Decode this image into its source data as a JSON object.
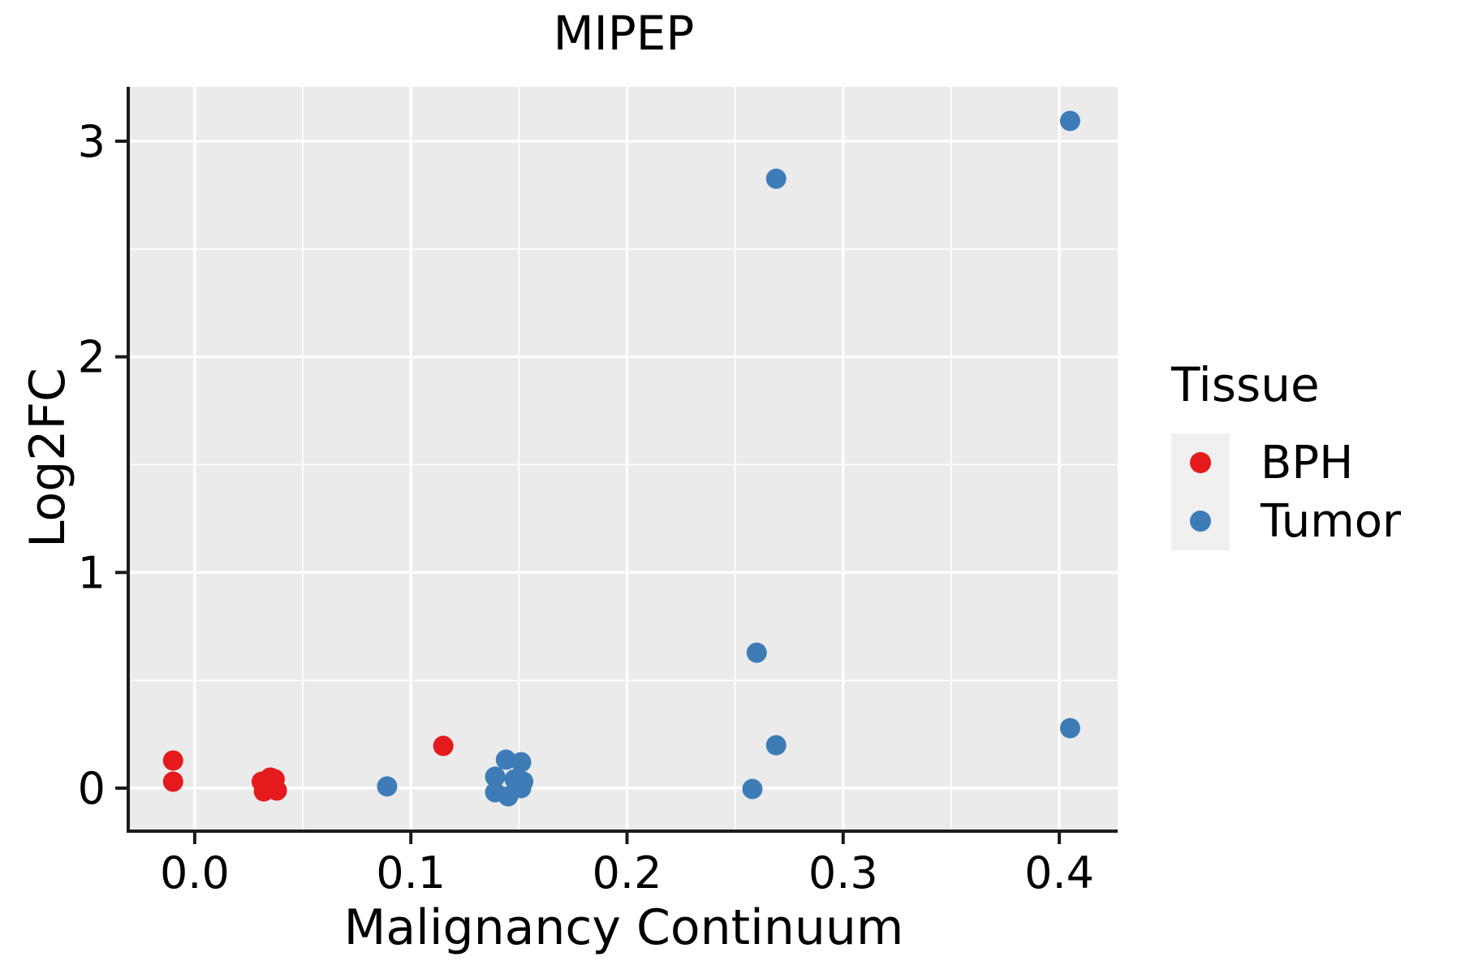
{
  "title": "MIPEP",
  "legend": {
    "title": "Tissue",
    "entries": [
      {
        "label": "BPH",
        "color": "#E41A1C"
      },
      {
        "label": "Tumor",
        "color": "#3E7CB7"
      }
    ]
  },
  "colors": {
    "panel_background": "#EBEBEB",
    "grid": "#FFFFFF",
    "axis": "#1a1a1a",
    "text": "#000000",
    "legend_key_background": "#F0F0F0",
    "bph": "#E41A1C",
    "tumor": "#3E7CB7"
  },
  "chart_data": {
    "type": "scatter",
    "title": "MIPEP",
    "xlabel": "Malignancy Continuum",
    "ylabel": "Log2FC",
    "xlim": [
      -0.03,
      0.427
    ],
    "ylim": [
      -0.192,
      3.252
    ],
    "x_ticks": [
      0.0,
      0.1,
      0.2,
      0.3,
      0.4
    ],
    "x_tick_labels": [
      "0.0",
      "0.1",
      "0.2",
      "0.3",
      "0.4"
    ],
    "y_ticks": [
      0,
      1,
      2,
      3
    ],
    "y_tick_labels": [
      "0",
      "1",
      "2",
      "3"
    ],
    "x_minor_ticks": [
      0.05,
      0.15,
      0.25,
      0.35
    ],
    "y_minor_ticks": [
      0.5,
      1.5,
      2.5
    ],
    "grid": true,
    "legend_position": "right",
    "point_radius_px": 12.5,
    "series": [
      {
        "name": "BPH",
        "color": "#E41A1C",
        "points": [
          [
            -0.01,
            0.128
          ],
          [
            -0.01,
            0.03
          ],
          [
            0.031,
            0.03
          ],
          [
            0.035,
            0.049
          ],
          [
            0.037,
            0.041
          ],
          [
            0.034,
            -0.004
          ],
          [
            0.038,
            -0.011
          ],
          [
            0.032,
            -0.015
          ],
          [
            0.115,
            0.196
          ]
        ]
      },
      {
        "name": "Tumor",
        "color": "#3E7CB7",
        "points": [
          [
            0.089,
            0.008
          ],
          [
            0.144,
            0.132
          ],
          [
            0.151,
            0.12
          ],
          [
            0.139,
            0.053
          ],
          [
            0.148,
            0.041
          ],
          [
            0.152,
            0.03
          ],
          [
            0.139,
            -0.019
          ],
          [
            0.145,
            -0.038
          ],
          [
            0.151,
            0.0
          ],
          [
            0.26,
            0.628
          ],
          [
            0.269,
            0.199
          ],
          [
            0.258,
            -0.004
          ],
          [
            0.269,
            2.826
          ],
          [
            0.405,
            3.094
          ],
          [
            0.405,
            0.278
          ]
        ]
      }
    ]
  }
}
